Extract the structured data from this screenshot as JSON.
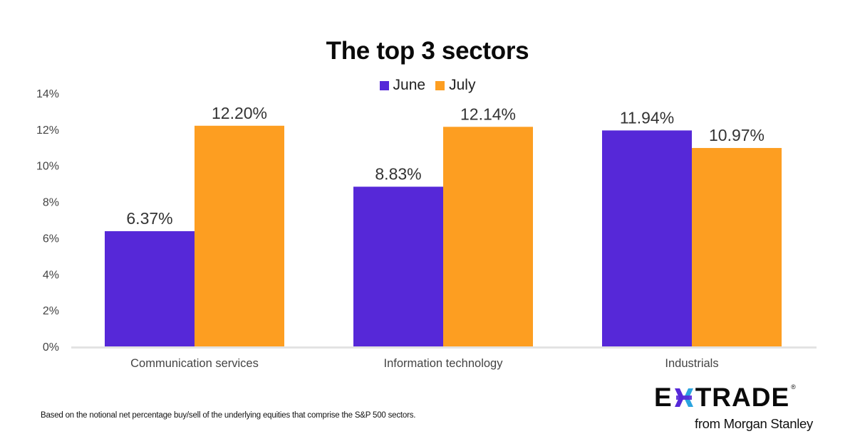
{
  "chart_data": {
    "type": "bar",
    "title": "The top 3 sectors",
    "categories": [
      "Communication services",
      "Information technology",
      "Industrials"
    ],
    "series": [
      {
        "name": "June",
        "color": "#5628D8",
        "values": [
          6.37,
          8.83,
          11.94
        ],
        "labels": [
          "6.37%",
          "8.83%",
          "11.94%"
        ]
      },
      {
        "name": "July",
        "color": "#FD9E21",
        "values": [
          12.2,
          12.14,
          10.97
        ],
        "labels": [
          "12.20%",
          "12.14%",
          "10.97%"
        ]
      }
    ],
    "xlabel": "",
    "ylabel": "",
    "ylim": [
      0,
      14
    ],
    "yticks": [
      0,
      2,
      4,
      6,
      8,
      10,
      12,
      14
    ],
    "ytick_labels": [
      "0%",
      "2%",
      "4%",
      "6%",
      "8%",
      "10%",
      "12%",
      "14%"
    ],
    "grid": false,
    "legend_position": "top-center"
  },
  "footnote": "Based on the notional net percentage buy/sell of the underlying equities that comprise the S&P 500 sectors.",
  "logo": {
    "brand_left": "E",
    "brand_right": "TRADE",
    "registered": "®",
    "tagline": "from Morgan Stanley",
    "star_colors": {
      "purple": "#5628D8",
      "blue": "#2BA4DF"
    }
  },
  "axis_color": "#E3E3E3"
}
